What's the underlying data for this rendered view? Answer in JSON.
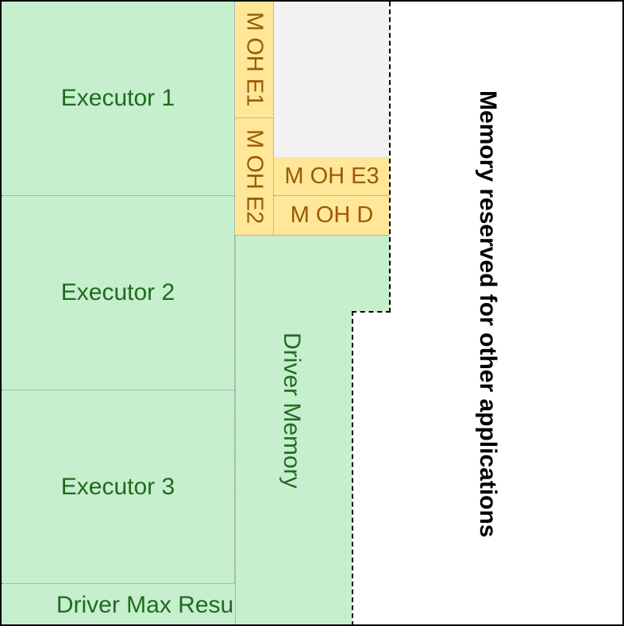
{
  "diagram": {
    "executors": [
      {
        "label": "Executor 1"
      },
      {
        "label": "Executor 2"
      },
      {
        "label": "Executor 3"
      }
    ],
    "overheads": {
      "e1": "M OH E1",
      "e2": "M OH E2",
      "e3": "M OH E3",
      "driver": "M OH D"
    },
    "driver_memory": "Driver Memory",
    "driver_max_results": "Driver Max Results",
    "reserved": "Memory reserved for other applications",
    "colors": {
      "memory_fill": "#c6efce",
      "memory_text": "#1f6b1f",
      "overhead_fill": "#ffe699",
      "overhead_text": "#9c5a00",
      "free_fill": "#f2f2f2",
      "reserved_text": "#000000"
    }
  }
}
